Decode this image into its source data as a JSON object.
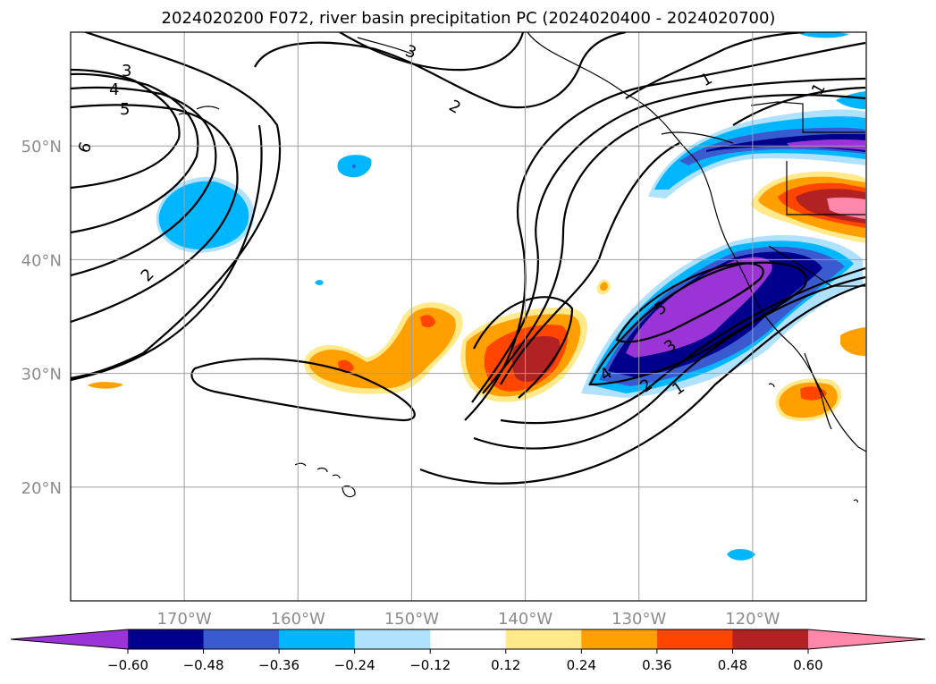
{
  "title": "2024020200 F072, river basin precipitation PC (2024020400 - 2024020700)",
  "map": {
    "projection": "PlateCarree",
    "lon_range": [
      -180,
      -110
    ],
    "lat_range": [
      10,
      60
    ],
    "lat_gridlines": [
      20,
      30,
      40,
      50
    ],
    "lon_gridlines": [
      -170,
      -160,
      -150,
      -140,
      -130,
      -120
    ],
    "lat_labels": [
      "20°N",
      "30°N",
      "40°N",
      "50°N"
    ],
    "lon_labels": [
      "170°W",
      "160°W",
      "150°W",
      "140°W",
      "130°W",
      "120°W"
    ]
  },
  "contour_labels": [
    "3",
    "4",
    "5",
    "6",
    "2",
    "3",
    "2",
    "1",
    "1",
    "5",
    "3",
    "2",
    "1",
    "4"
  ],
  "colorbar": {
    "ticks": [
      "−0.60",
      "−0.48",
      "−0.36",
      "−0.24",
      "−0.12",
      "0.12",
      "0.24",
      "0.36",
      "0.48",
      "0.60"
    ],
    "colors": [
      "#9a34d6",
      "#00008c",
      "#3a5bd0",
      "#00b7ff",
      "#b0e2ff",
      "#ffffff",
      "#ffe98a",
      "#ffa000",
      "#ff4500",
      "#b22222",
      "#ff88aa"
    ],
    "extend": "both"
  },
  "chart_data": {
    "type": "filled_contour_map",
    "variable": "river basin precipitation PC",
    "levels": [
      -0.6,
      -0.48,
      -0.36,
      -0.24,
      -0.12,
      0.12,
      0.24,
      0.36,
      0.48,
      0.6
    ],
    "overlay_contour_levels": [
      1,
      2,
      3,
      4,
      5,
      6
    ]
  }
}
